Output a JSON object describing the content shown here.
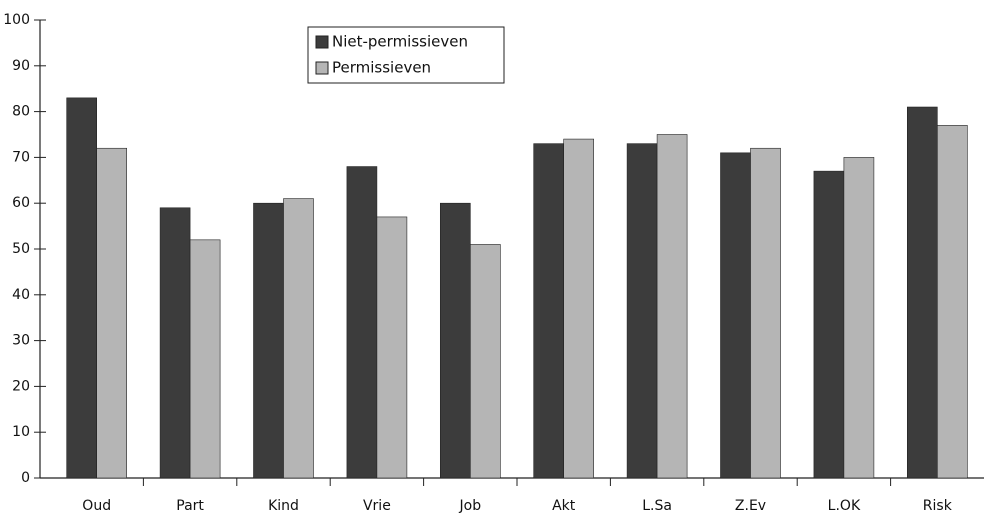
{
  "chart_data": {
    "type": "bar",
    "categories": [
      "Oud",
      "Part",
      "Kind",
      "Vrie",
      "Job",
      "Akt",
      "L.Sa",
      "Z.Ev",
      "L.OK",
      "Risk"
    ],
    "series": [
      {
        "name": "Niet-permissieven",
        "color": "#3c3c3c",
        "values": [
          83,
          59,
          60,
          68,
          60,
          73,
          73,
          71,
          67,
          81
        ]
      },
      {
        "name": "Permissieven",
        "color": "#b5b5b5",
        "values": [
          72,
          52,
          61,
          57,
          51,
          74,
          75,
          72,
          70,
          77
        ]
      }
    ],
    "ylim": [
      0,
      100
    ],
    "yticks": [
      0,
      10,
      20,
      30,
      40,
      50,
      60,
      70,
      80,
      90,
      100
    ],
    "grid": false,
    "legend": "top"
  }
}
